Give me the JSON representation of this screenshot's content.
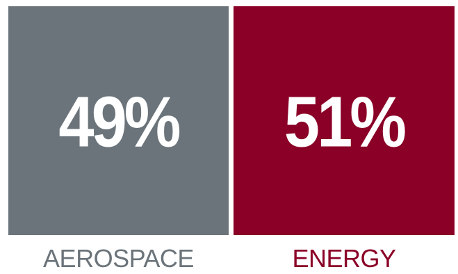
{
  "chart_data": {
    "type": "bar",
    "categories": [
      "AEROSPACE",
      "ENERGY"
    ],
    "values": [
      49,
      51
    ],
    "value_labels": [
      "49%",
      "51%"
    ],
    "colors": [
      "#6b747a",
      "#8a0026"
    ],
    "title": "",
    "xlabel": "",
    "ylabel": ""
  }
}
